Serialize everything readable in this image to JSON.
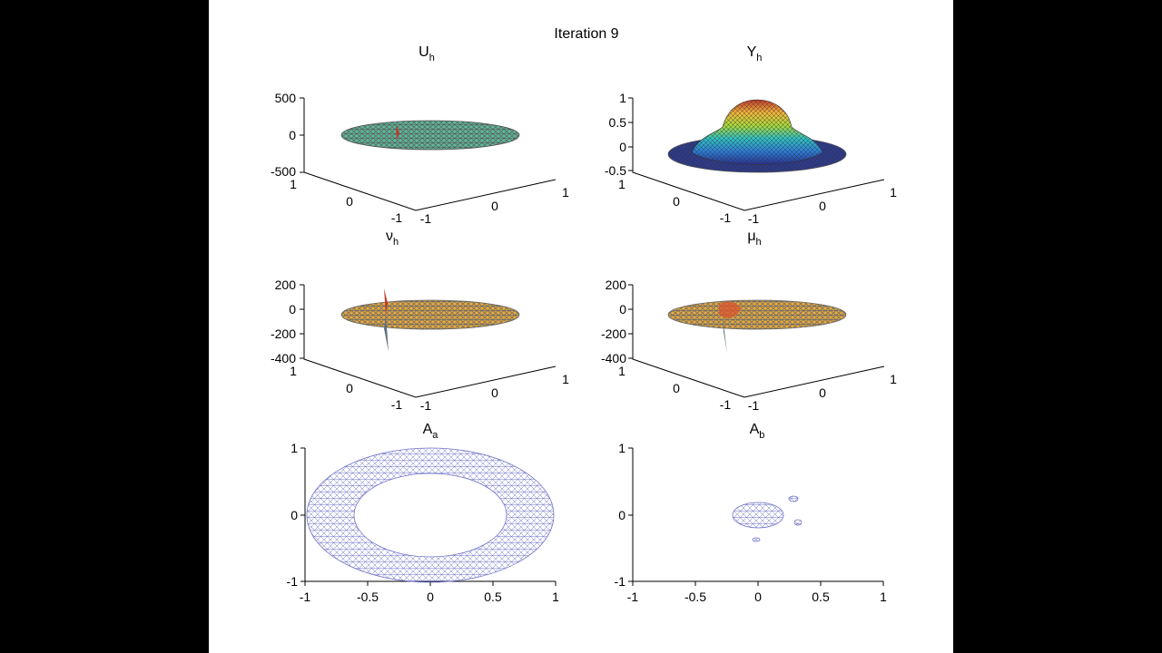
{
  "figure": {
    "title": "Iteration 9",
    "background": "#ffffff",
    "page_color": "#000000"
  },
  "chart_data": [
    {
      "type": "surface3d",
      "title_main": "U",
      "title_sub": "h",
      "zticks": [
        "500",
        "0",
        "-500"
      ],
      "zlim": [
        -500,
        500
      ],
      "xticks": [
        "-1",
        "0",
        "1"
      ],
      "yticks": [
        "1",
        "0",
        "-1"
      ],
      "surface_colors": [
        "#5fb89a",
        "#6b6b6b"
      ],
      "peak_color": "#c0392b"
    },
    {
      "type": "surface3d",
      "title_main": "Y",
      "title_sub": "h",
      "zticks": [
        "1",
        "0.5",
        "0",
        "-0.5"
      ],
      "zlim": [
        -0.5,
        1
      ],
      "xticks": [
        "-1",
        "0",
        "1"
      ],
      "yticks": [
        "1",
        "0",
        "-1"
      ],
      "colormap": [
        "#2a2f8f",
        "#2b7bd6",
        "#2fc0c0",
        "#a8d83a",
        "#f2b43a",
        "#c0392b"
      ],
      "dome_peak": 0.9
    },
    {
      "type": "surface3d",
      "title_main": "ν",
      "title_sub": "h",
      "zticks": [
        "200",
        "0",
        "-200",
        "-400"
      ],
      "zlim": [
        -400,
        200
      ],
      "xticks": [
        "-1",
        "0",
        "1"
      ],
      "yticks": [
        "1",
        "0",
        "-1"
      ],
      "surface_colors": [
        "#f0a830",
        "#6b6b6b"
      ],
      "spike_max": 200,
      "spike_min": -400
    },
    {
      "type": "surface3d",
      "title_main": "μ",
      "title_sub": "h",
      "zticks": [
        "200",
        "0",
        "-200",
        "-400"
      ],
      "zlim": [
        -400,
        200
      ],
      "xticks": [
        "-1",
        "0",
        "1"
      ],
      "yticks": [
        "1",
        "0",
        "-1"
      ],
      "surface_colors": [
        "#f0a830",
        "#6b6b6b"
      ],
      "spike_max": 200,
      "spike_min": -400
    },
    {
      "type": "mesh2d",
      "title_main": "A",
      "title_sub": "a",
      "xticks": [
        "-1",
        "-0.5",
        "0",
        "0.5",
        "1"
      ],
      "yticks": [
        "1",
        "0",
        "-1"
      ],
      "xlim": [
        -1,
        1
      ],
      "ylim": [
        -1,
        1
      ],
      "shape": "annulus",
      "outer_radius": 1.0,
      "inner_radius": 0.62,
      "mesh_color": "#6f74c8"
    },
    {
      "type": "mesh2d",
      "title_main": "A",
      "title_sub": "b",
      "xticks": [
        "-1",
        "-0.5",
        "0",
        "0.5",
        "1"
      ],
      "yticks": [
        "1",
        "0",
        "-1"
      ],
      "xlim": [
        -1,
        1
      ],
      "ylim": [
        -1,
        1
      ],
      "shape": "blobs",
      "blobs": [
        {
          "x": 0.0,
          "y": 0.0,
          "r": 0.2
        },
        {
          "x": 0.29,
          "y": 0.25,
          "r": 0.04
        },
        {
          "x": 0.32,
          "y": -0.08,
          "r": 0.04
        },
        {
          "x": -0.02,
          "y": -0.37,
          "r": 0.03
        }
      ],
      "mesh_color": "#6f74c8"
    }
  ]
}
